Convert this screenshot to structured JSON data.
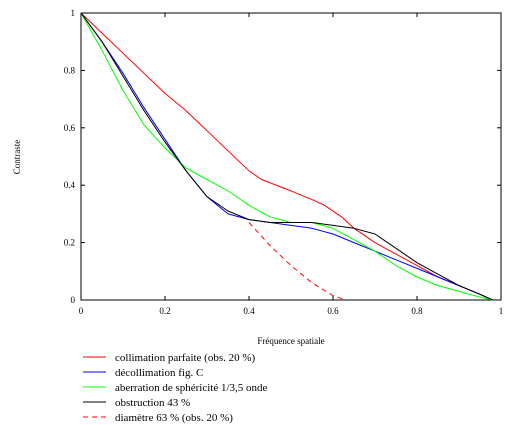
{
  "chart_data": {
    "type": "line",
    "xlabel": "Fréquence spatiale",
    "ylabel": "Contraste",
    "xlim": [
      0,
      1
    ],
    "ylim": [
      0,
      1
    ],
    "x_ticks": [
      "0",
      "0.2",
      "0.4",
      "0.6",
      "0.8",
      "1"
    ],
    "y_ticks": [
      "0",
      "0.2",
      "0.4",
      "0.6",
      "0.8",
      "1"
    ],
    "grid": false,
    "legend_position": "bottom",
    "series": [
      {
        "name": "collimation parfaite (obs. 20 %)",
        "color": "#ff0000",
        "dash": "solid",
        "points": [
          [
            0,
            1
          ],
          [
            0.05,
            0.93
          ],
          [
            0.1,
            0.86
          ],
          [
            0.15,
            0.79
          ],
          [
            0.2,
            0.72
          ],
          [
            0.25,
            0.66
          ],
          [
            0.3,
            0.59
          ],
          [
            0.35,
            0.52
          ],
          [
            0.4,
            0.45
          ],
          [
            0.43,
            0.42
          ],
          [
            0.5,
            0.38
          ],
          [
            0.55,
            0.35
          ],
          [
            0.58,
            0.33
          ],
          [
            0.62,
            0.29
          ],
          [
            0.65,
            0.25
          ],
          [
            0.7,
            0.2
          ],
          [
            0.75,
            0.16
          ],
          [
            0.8,
            0.12
          ],
          [
            0.85,
            0.08
          ],
          [
            0.9,
            0.05
          ],
          [
            0.95,
            0.02
          ],
          [
            0.98,
            0
          ]
        ]
      },
      {
        "name": "décollimation fig. C",
        "color": "#0000ff",
        "dash": "solid",
        "points": [
          [
            0,
            1
          ],
          [
            0.05,
            0.9
          ],
          [
            0.1,
            0.79
          ],
          [
            0.15,
            0.67
          ],
          [
            0.2,
            0.56
          ],
          [
            0.25,
            0.45
          ],
          [
            0.3,
            0.36
          ],
          [
            0.35,
            0.3
          ],
          [
            0.4,
            0.28
          ],
          [
            0.45,
            0.27
          ],
          [
            0.5,
            0.26
          ],
          [
            0.55,
            0.25
          ],
          [
            0.6,
            0.23
          ],
          [
            0.65,
            0.2
          ],
          [
            0.7,
            0.17
          ],
          [
            0.75,
            0.14
          ],
          [
            0.8,
            0.11
          ],
          [
            0.85,
            0.08
          ],
          [
            0.9,
            0.05
          ],
          [
            0.95,
            0.02
          ],
          [
            0.98,
            0
          ]
        ]
      },
      {
        "name": "aberration de sphéricité 1/3,5 onde",
        "color": "#00ff00",
        "dash": "solid",
        "points": [
          [
            0,
            1
          ],
          [
            0.05,
            0.87
          ],
          [
            0.1,
            0.73
          ],
          [
            0.15,
            0.61
          ],
          [
            0.2,
            0.53
          ],
          [
            0.25,
            0.46
          ],
          [
            0.3,
            0.42
          ],
          [
            0.35,
            0.38
          ],
          [
            0.4,
            0.33
          ],
          [
            0.45,
            0.29
          ],
          [
            0.5,
            0.27
          ],
          [
            0.55,
            0.27
          ],
          [
            0.6,
            0.25
          ],
          [
            0.65,
            0.21
          ],
          [
            0.7,
            0.17
          ],
          [
            0.75,
            0.12
          ],
          [
            0.8,
            0.08
          ],
          [
            0.85,
            0.05
          ],
          [
            0.9,
            0.03
          ],
          [
            0.95,
            0.01
          ],
          [
            0.98,
            0
          ]
        ]
      },
      {
        "name": "obstruction 43 %",
        "color": "#000000",
        "dash": "solid",
        "points": [
          [
            0,
            1
          ],
          [
            0.05,
            0.9
          ],
          [
            0.1,
            0.78
          ],
          [
            0.15,
            0.66
          ],
          [
            0.2,
            0.55
          ],
          [
            0.25,
            0.45
          ],
          [
            0.3,
            0.36
          ],
          [
            0.35,
            0.31
          ],
          [
            0.4,
            0.28
          ],
          [
            0.45,
            0.27
          ],
          [
            0.5,
            0.27
          ],
          [
            0.55,
            0.27
          ],
          [
            0.6,
            0.26
          ],
          [
            0.65,
            0.25
          ],
          [
            0.7,
            0.23
          ],
          [
            0.75,
            0.18
          ],
          [
            0.8,
            0.13
          ],
          [
            0.85,
            0.09
          ],
          [
            0.9,
            0.05
          ],
          [
            0.95,
            0.02
          ],
          [
            0.98,
            0
          ]
        ]
      },
      {
        "name": "diamètre 63 % (obs. 20 %)",
        "color": "#ff0000",
        "dash": "dashed",
        "points": [
          [
            0.4,
            0.27
          ],
          [
            0.45,
            0.19
          ],
          [
            0.5,
            0.12
          ],
          [
            0.55,
            0.06
          ],
          [
            0.6,
            0.015
          ],
          [
            0.63,
            0
          ]
        ]
      }
    ]
  }
}
